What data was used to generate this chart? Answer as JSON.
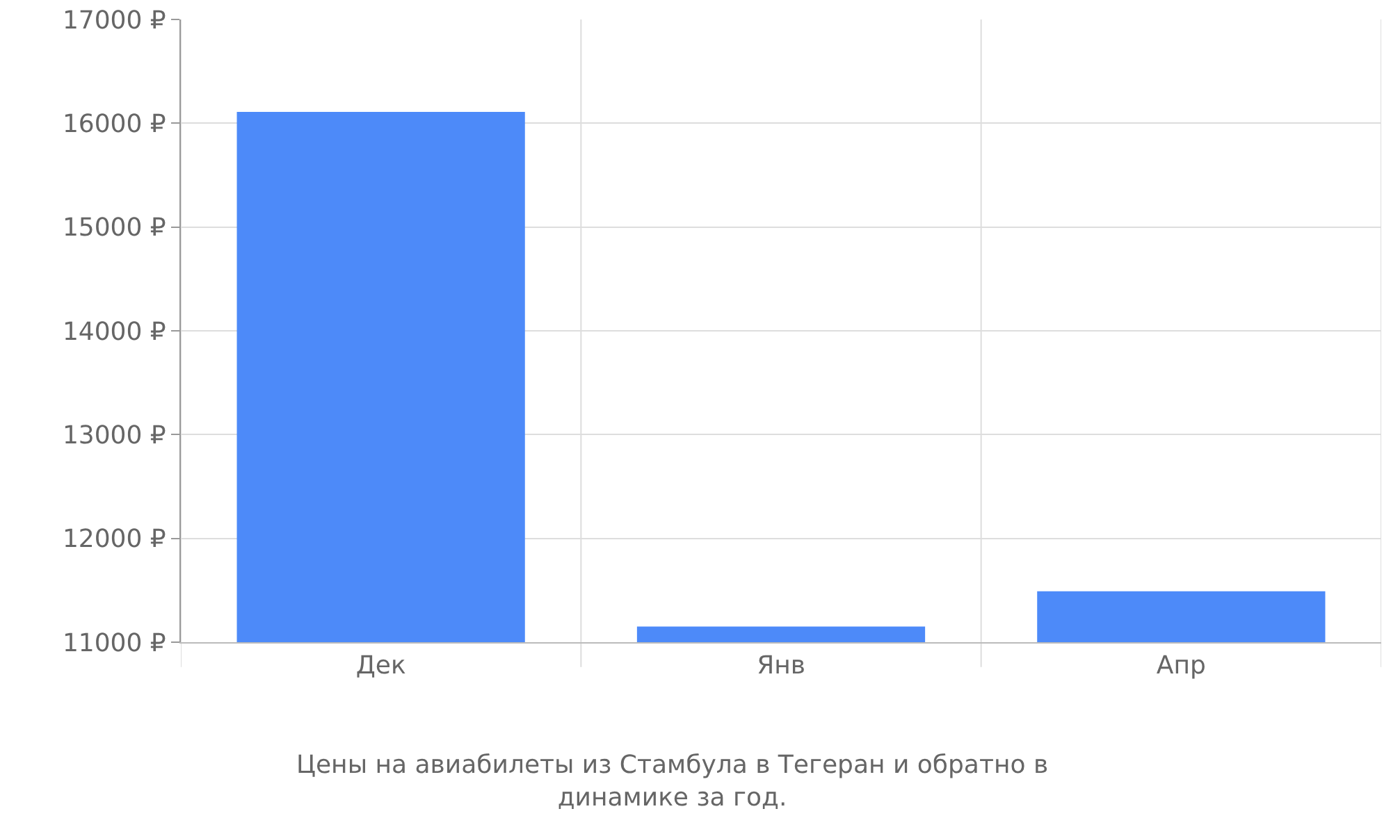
{
  "chart_data": {
    "type": "bar",
    "categories": [
      "Дек",
      "Янв",
      "Апр"
    ],
    "values": [
      16110,
      11150,
      11490
    ],
    "color": "#4d8af9",
    "ylim": [
      11000,
      17000
    ],
    "yticks": [
      {
        "value": 11000,
        "label": "11000 ₽"
      },
      {
        "value": 12000,
        "label": "12000 ₽"
      },
      {
        "value": 13000,
        "label": "13000 ₽"
      },
      {
        "value": 14000,
        "label": "14000 ₽"
      },
      {
        "value": 15000,
        "label": "15000 ₽"
      },
      {
        "value": 16000,
        "label": "16000 ₽"
      },
      {
        "value": 17000,
        "label": "17000 ₽"
      }
    ],
    "grid": true,
    "annotations": [
      "Цены на авиабилеты из Стамбула в Тегеран и обратно в динамике за год."
    ]
  }
}
